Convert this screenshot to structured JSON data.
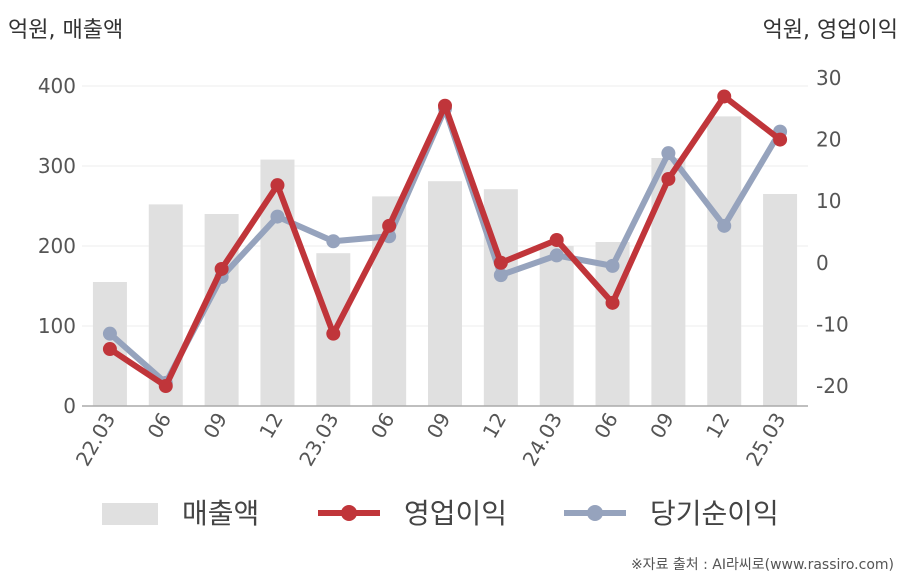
{
  "header": {
    "left_unit": "억원, 매출액",
    "right_unit": "억원, 영업이익"
  },
  "source": "※자료 출처 : AI라씨로(www.rassiro.com)",
  "colors": {
    "bar": "#e0e0e0",
    "operating_profit": "#c0353a",
    "net_income": "#96a3bd",
    "grid": "#eeeeee",
    "axis": "#aaaaaa"
  },
  "chart_data": {
    "type": "bar+line",
    "categories": [
      "22.03",
      "06",
      "09",
      "12",
      "23.03",
      "06",
      "09",
      "12",
      "24.03",
      "06",
      "09",
      "12",
      "25.03"
    ],
    "left_axis": {
      "ylim": [
        0,
        400
      ],
      "ticks": [
        0,
        100,
        200,
        300,
        400
      ]
    },
    "right_axis": {
      "ylim": [
        -25,
        30
      ],
      "ticks": [
        -20,
        -10,
        0,
        10,
        20,
        30
      ]
    },
    "series": [
      {
        "name": "매출액",
        "type": "bar",
        "axis": "left",
        "values": [
          155,
          252,
          240,
          308,
          191,
          262,
          281,
          271,
          200,
          205,
          310,
          362,
          265
        ]
      },
      {
        "name": "영업이익",
        "type": "line",
        "axis": "right",
        "values": [
          -14,
          -20,
          -1,
          12.6,
          -11.5,
          6,
          25.5,
          0,
          3.7,
          -6.5,
          13.6,
          27,
          20
        ]
      },
      {
        "name": "당기순이익",
        "type": "line",
        "axis": "right",
        "values": [
          -11.5,
          -19.5,
          -2.3,
          7.5,
          3.5,
          4.3,
          25,
          -2,
          1.2,
          -0.5,
          17.8,
          6,
          21.3
        ]
      }
    ],
    "grid": true,
    "legend_position": "bottom"
  }
}
